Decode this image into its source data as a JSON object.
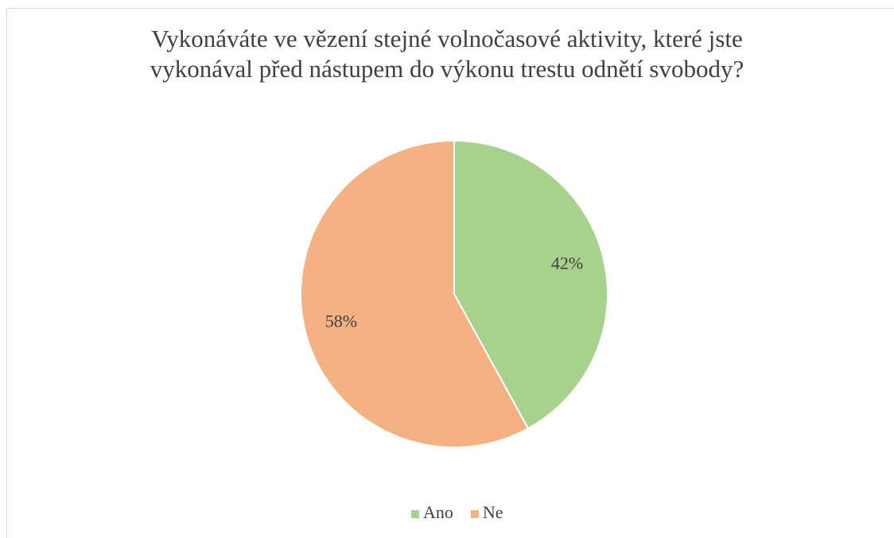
{
  "chart_data": {
    "type": "pie",
    "title": "Vykonáváte ve vězení stejné volnočasové aktivity, které jste vykonával před nástupem do výkonu trestu odnětí svobody?",
    "categories": [
      "Ano",
      "Ne"
    ],
    "values": [
      42,
      58
    ],
    "value_labels": [
      "42%",
      "58%"
    ],
    "colors": [
      "#a9d18e",
      "#f4b183"
    ],
    "legend": "bottom"
  }
}
